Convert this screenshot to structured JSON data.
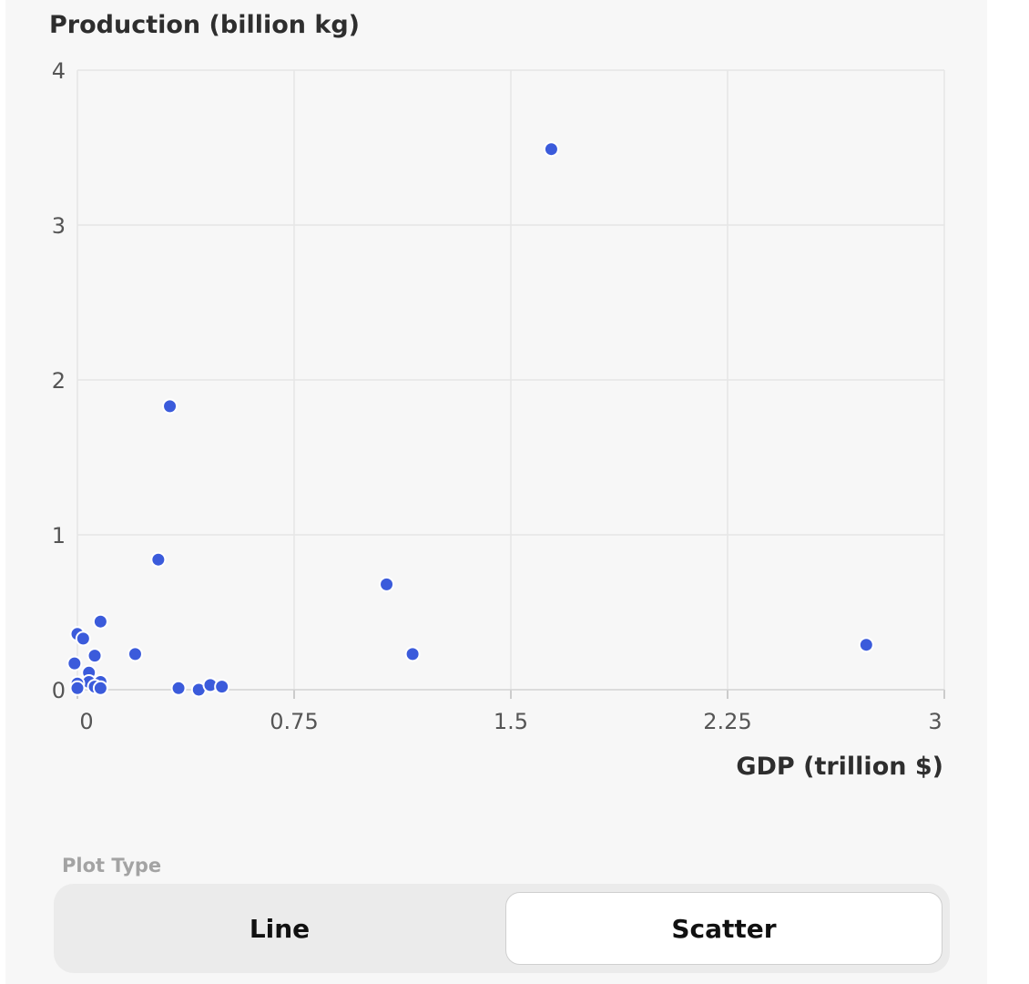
{
  "chart_data": {
    "type": "scatter",
    "title": "",
    "xlabel": "GDP (trillion $)",
    "ylabel": "Production (billion kg)",
    "xlim": [
      0,
      3
    ],
    "ylim": [
      0,
      4
    ],
    "x_ticks": [
      "0",
      "0.75",
      "1.5",
      "2.25",
      "3"
    ],
    "y_ticks": [
      "0",
      "1",
      "2",
      "3",
      "4"
    ],
    "grid": true,
    "color": "#3b5bdb",
    "points": [
      {
        "x": 1.64,
        "y": 3.49
      },
      {
        "x": 0.32,
        "y": 1.83
      },
      {
        "x": 0.28,
        "y": 0.84
      },
      {
        "x": 1.07,
        "y": 0.68
      },
      {
        "x": 1.16,
        "y": 0.23
      },
      {
        "x": 2.73,
        "y": 0.29
      },
      {
        "x": 0.08,
        "y": 0.44
      },
      {
        "x": 0.0,
        "y": 0.36
      },
      {
        "x": 0.02,
        "y": 0.33
      },
      {
        "x": 0.2,
        "y": 0.23
      },
      {
        "x": 0.06,
        "y": 0.22
      },
      {
        "x": -0.01,
        "y": 0.17
      },
      {
        "x": 0.04,
        "y": 0.11
      },
      {
        "x": 0.04,
        "y": 0.05
      },
      {
        "x": 0.08,
        "y": 0.05
      },
      {
        "x": 0.0,
        "y": 0.04
      },
      {
        "x": 0.06,
        "y": 0.02
      },
      {
        "x": 0.0,
        "y": 0.01
      },
      {
        "x": 0.08,
        "y": 0.01
      },
      {
        "x": 0.35,
        "y": 0.01
      },
      {
        "x": 0.42,
        "y": 0.0
      },
      {
        "x": 0.46,
        "y": 0.03
      },
      {
        "x": 0.5,
        "y": 0.02
      }
    ]
  },
  "controls": {
    "plot_type_label": "Plot Type",
    "options": [
      "Line",
      "Scatter"
    ],
    "selected": "Scatter"
  }
}
